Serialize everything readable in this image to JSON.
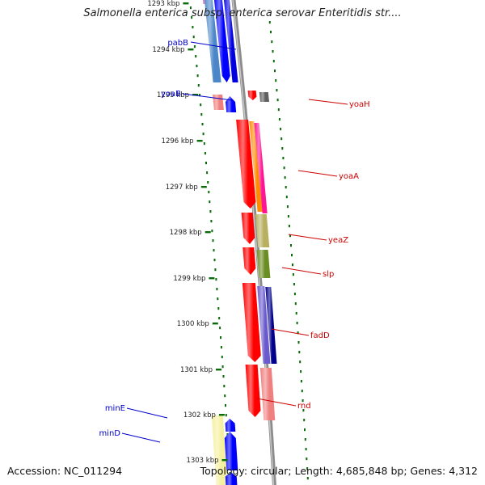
{
  "title": "Salmonella enterica subsp. enterica serovar Enteritidis str....",
  "accession": "Accession: NC_011294",
  "summary": "Topology: circular; Length: 4,685,848 bp; Genes: 4,312",
  "colors": {
    "backbone": "#8c8c8c",
    "forward_label": "#0000cc",
    "reverse_label": "#cc0000",
    "scale_tick": "#0b6b0b"
  },
  "kbp_ticks": [
    "1293 kbp",
    "1294 kbp",
    "1295 kbp",
    "1296 kbp",
    "1297 kbp",
    "1298 kbp",
    "1299 kbp",
    "1300 kbp",
    "1301 kbp",
    "1302 kbp",
    "1303 kbp"
  ],
  "genes": [
    {
      "name": "pabB",
      "strand": "forward"
    },
    {
      "name": "yoaB",
      "strand": "forward"
    },
    {
      "name": "yoaH",
      "strand": "reverse"
    },
    {
      "name": "yoaA",
      "strand": "reverse"
    },
    {
      "name": "yeaZ",
      "strand": "reverse"
    },
    {
      "name": "slp",
      "strand": "reverse"
    },
    {
      "name": "fadD",
      "strand": "reverse"
    },
    {
      "name": "rnd",
      "strand": "reverse"
    },
    {
      "name": "minE",
      "strand": "forward"
    },
    {
      "name": "minD",
      "strand": "forward"
    }
  ]
}
